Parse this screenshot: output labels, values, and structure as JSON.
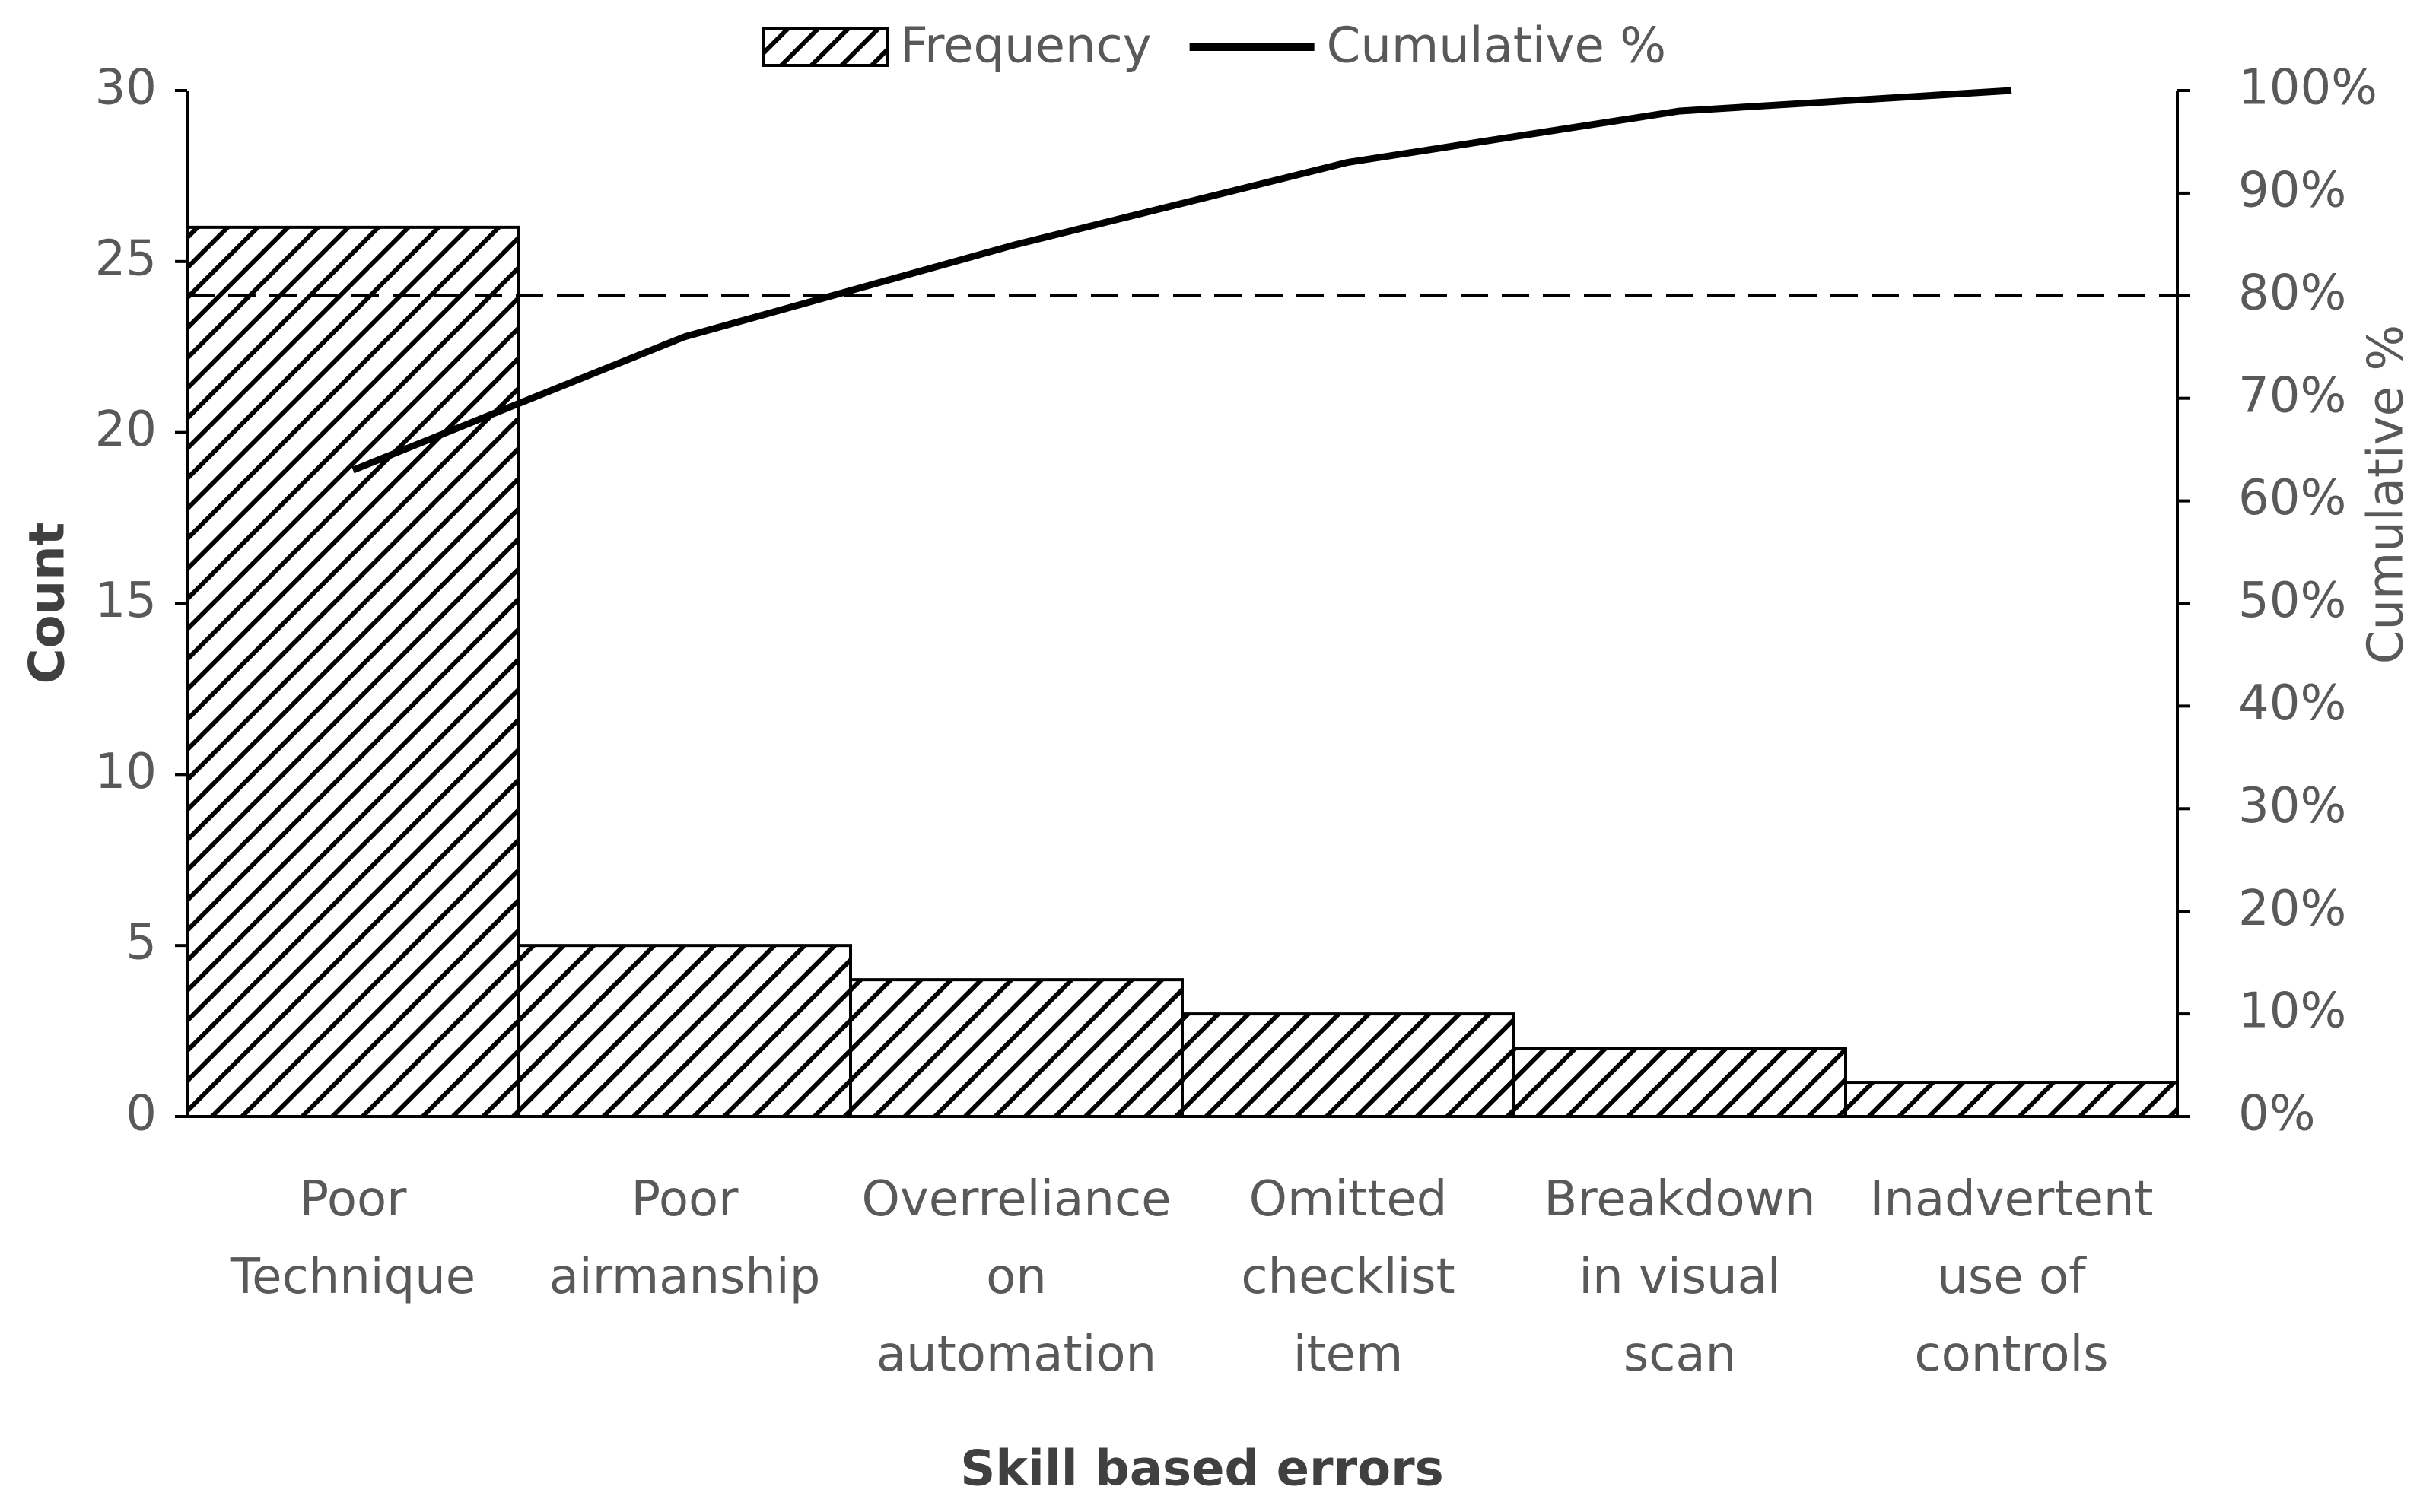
{
  "chart_data": {
    "type": "pareto",
    "categories": [
      "Poor\nTechnique",
      "Poor\nairmanship",
      "Overreliance\non\nautomation",
      "Omitted\nchecklist\nitem",
      "Breakdown\nin visual\nscan",
      "Inadvertent\nuse of\ncontrols"
    ],
    "series": [
      {
        "name": "Frequency",
        "type": "bar",
        "color": "#000000",
        "hatch": true,
        "values": [
          26,
          5,
          4,
          3,
          2,
          1
        ]
      },
      {
        "name": "Cumulative %",
        "type": "line",
        "axis": "y2",
        "color": "#000000",
        "values": [
          63,
          76,
          85,
          93,
          98,
          100
        ]
      }
    ],
    "x_label": "Skill based errors",
    "y_label": "Count",
    "y2_label": "Cumulative %",
    "ylim": [
      0,
      30
    ],
    "yticks": [
      0,
      5,
      10,
      15,
      20,
      25,
      30
    ],
    "y2lim": [
      0,
      100
    ],
    "y2ticks": [
      {
        "value": 0,
        "label": "0%"
      },
      {
        "value": 10,
        "label": "10%"
      },
      {
        "value": 20,
        "label": "20%"
      },
      {
        "value": 30,
        "label": "30%"
      },
      {
        "value": 40,
        "label": "40%"
      },
      {
        "value": 50,
        "label": "50%"
      },
      {
        "value": 60,
        "label": "60%"
      },
      {
        "value": 70,
        "label": "70%"
      },
      {
        "value": 80,
        "label": "80%"
      },
      {
        "value": 90,
        "label": "90%"
      },
      {
        "value": 100,
        "label": "100%"
      }
    ],
    "y2_reference_line": 80,
    "legend": "top"
  }
}
